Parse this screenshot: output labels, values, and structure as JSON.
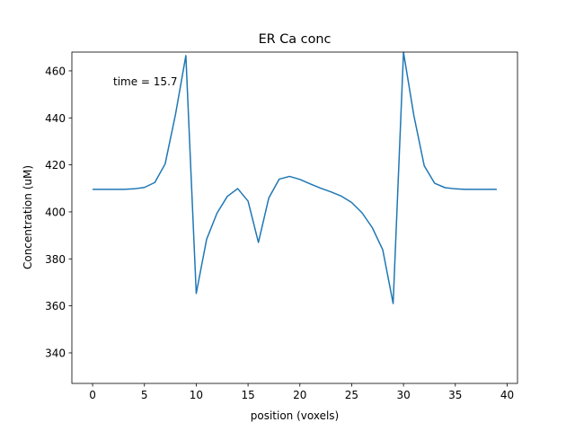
{
  "chart_data": {
    "type": "line",
    "title": "ER Ca conc",
    "xlabel": "position (voxels)",
    "ylabel": "Concentration (uM)",
    "xlim": [
      -2,
      41
    ],
    "ylim": [
      327,
      468
    ],
    "grid": false,
    "annotation": "time = 15.7",
    "x_ticks": [
      0,
      5,
      10,
      15,
      20,
      25,
      30,
      35,
      40
    ],
    "y_ticks": [
      340,
      360,
      380,
      400,
      420,
      440,
      460
    ],
    "line_color": "#1f77b4",
    "series": [
      {
        "x": [
          0,
          1,
          2,
          3,
          4,
          5,
          6,
          7,
          8,
          9,
          10,
          11,
          12,
          13,
          14,
          15,
          16,
          17,
          18,
          19,
          20,
          21,
          22,
          23,
          24,
          25,
          26,
          27,
          28,
          29,
          30,
          31,
          32,
          33,
          34,
          35,
          36,
          37,
          38,
          39
        ],
        "values": [
          409.6,
          409.6,
          409.6,
          409.6,
          409.8,
          410.4,
          412.5,
          420.4,
          441.5,
          466.5,
          365.3,
          388.3,
          399.4,
          406.6,
          409.9,
          404.6,
          387.0,
          405.9,
          413.9,
          415.1,
          413.8,
          411.9,
          410.1,
          408.5,
          406.7,
          404.0,
          399.6,
          393.2,
          383.8,
          361.0,
          467.9,
          441.0,
          419.6,
          412.2,
          410.3,
          409.8,
          409.6,
          409.6,
          409.6,
          409.6
        ]
      }
    ]
  }
}
